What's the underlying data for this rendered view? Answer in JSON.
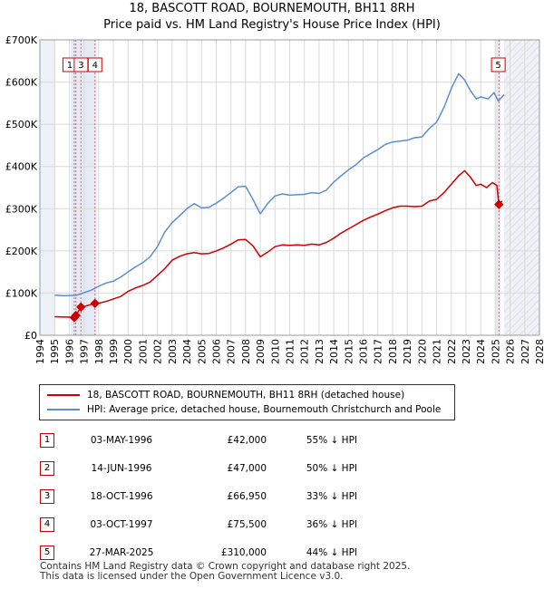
{
  "header": {
    "title": "18, BASCOTT ROAD, BOURNEMOUTH, BH11 8RH",
    "subtitle": "Price paid vs. HM Land Registry's House Price Index (HPI)"
  },
  "chart_data": {
    "type": "line",
    "xlim": [
      1994,
      2028
    ],
    "ylim": [
      0,
      700000
    ],
    "y_ticks": [
      {
        "value": 0,
        "label": "£0"
      },
      {
        "value": 100000,
        "label": "£100K"
      },
      {
        "value": 200000,
        "label": "£200K"
      },
      {
        "value": 300000,
        "label": "£300K"
      },
      {
        "value": 400000,
        "label": "£400K"
      },
      {
        "value": 500000,
        "label": "£500K"
      },
      {
        "value": 600000,
        "label": "£600K"
      },
      {
        "value": 700000,
        "label": "£700K"
      }
    ],
    "x_ticks": [
      "1994",
      "1995",
      "1996",
      "1997",
      "1998",
      "1999",
      "2000",
      "2001",
      "2002",
      "2003",
      "2004",
      "2005",
      "2006",
      "2007",
      "2008",
      "2009",
      "2010",
      "2011",
      "2012",
      "2013",
      "2014",
      "2015",
      "2016",
      "2017",
      "2018",
      "2019",
      "2020",
      "2021",
      "2022",
      "2023",
      "2024",
      "2025",
      "2026",
      "2027",
      "2028"
    ],
    "data_start": 1995.0,
    "data_end": 2025.6,
    "series": [
      {
        "name": "18, BASCOTT ROAD, BOURNEMOUTH, BH11 8RH (detached house)",
        "color": "#cc0000",
        "points": [
          [
            1995.0,
            44000
          ],
          [
            1995.5,
            43500
          ],
          [
            1996.0,
            43000
          ],
          [
            1996.33,
            42000
          ],
          [
            1996.45,
            47000
          ],
          [
            1996.79,
            66950
          ],
          [
            1997.0,
            68000
          ],
          [
            1997.75,
            75500
          ],
          [
            1998.0,
            76000
          ],
          [
            1998.5,
            80000
          ],
          [
            1999.0,
            86000
          ],
          [
            1999.5,
            92000
          ],
          [
            2000.0,
            104000
          ],
          [
            2000.5,
            112000
          ],
          [
            2001.0,
            118000
          ],
          [
            2001.5,
            126000
          ],
          [
            2002.0,
            142000
          ],
          [
            2002.5,
            158000
          ],
          [
            2003.0,
            178000
          ],
          [
            2003.5,
            187000
          ],
          [
            2004.0,
            193000
          ],
          [
            2004.5,
            196000
          ],
          [
            2005.0,
            193000
          ],
          [
            2005.5,
            194000
          ],
          [
            2006.0,
            200000
          ],
          [
            2006.5,
            207000
          ],
          [
            2007.0,
            216000
          ],
          [
            2007.5,
            226000
          ],
          [
            2008.0,
            227000
          ],
          [
            2008.5,
            212000
          ],
          [
            2009.0,
            186000
          ],
          [
            2009.5,
            197000
          ],
          [
            2010.0,
            210000
          ],
          [
            2010.5,
            214000
          ],
          [
            2011.0,
            213000
          ],
          [
            2011.5,
            214000
          ],
          [
            2012.0,
            213000
          ],
          [
            2012.5,
            216000
          ],
          [
            2013.0,
            214000
          ],
          [
            2013.5,
            220000
          ],
          [
            2014.0,
            230000
          ],
          [
            2014.5,
            242000
          ],
          [
            2015.0,
            252000
          ],
          [
            2015.5,
            262000
          ],
          [
            2016.0,
            272000
          ],
          [
            2016.5,
            280000
          ],
          [
            2017.0,
            287000
          ],
          [
            2017.5,
            295000
          ],
          [
            2018.0,
            302000
          ],
          [
            2018.5,
            306000
          ],
          [
            2019.0,
            306000
          ],
          [
            2019.5,
            305000
          ],
          [
            2020.0,
            306000
          ],
          [
            2020.5,
            318000
          ],
          [
            2021.0,
            322000
          ],
          [
            2021.5,
            338000
          ],
          [
            2022.0,
            358000
          ],
          [
            2022.5,
            378000
          ],
          [
            2022.9,
            390000
          ],
          [
            2023.3,
            375000
          ],
          [
            2023.7,
            355000
          ],
          [
            2024.0,
            358000
          ],
          [
            2024.4,
            350000
          ],
          [
            2024.8,
            362000
          ],
          [
            2025.1,
            355000
          ],
          [
            2025.24,
            310000
          ],
          [
            2025.45,
            318000
          ]
        ]
      },
      {
        "name": "HPI: Average price, detached house, Bournemouth Christchurch and Poole",
        "color": "#5b8fd0",
        "points": [
          [
            1995.0,
            95000
          ],
          [
            1995.5,
            94000
          ],
          [
            1996.0,
            94000
          ],
          [
            1996.5,
            95000
          ],
          [
            1997.0,
            101000
          ],
          [
            1997.5,
            107000
          ],
          [
            1998.0,
            116000
          ],
          [
            1998.5,
            124000
          ],
          [
            1999.0,
            128000
          ],
          [
            1999.5,
            138000
          ],
          [
            2000.0,
            150000
          ],
          [
            2000.5,
            162000
          ],
          [
            2001.0,
            172000
          ],
          [
            2001.5,
            186000
          ],
          [
            2002.0,
            210000
          ],
          [
            2002.5,
            245000
          ],
          [
            2003.0,
            267000
          ],
          [
            2003.5,
            283000
          ],
          [
            2004.0,
            300000
          ],
          [
            2004.5,
            312000
          ],
          [
            2005.0,
            302000
          ],
          [
            2005.5,
            303000
          ],
          [
            2006.0,
            313000
          ],
          [
            2006.5,
            325000
          ],
          [
            2007.0,
            338000
          ],
          [
            2007.5,
            352000
          ],
          [
            2008.0,
            353000
          ],
          [
            2008.5,
            322000
          ],
          [
            2009.0,
            288000
          ],
          [
            2009.5,
            312000
          ],
          [
            2010.0,
            330000
          ],
          [
            2010.5,
            335000
          ],
          [
            2011.0,
            332000
          ],
          [
            2011.5,
            333000
          ],
          [
            2012.0,
            334000
          ],
          [
            2012.5,
            338000
          ],
          [
            2013.0,
            336000
          ],
          [
            2013.5,
            344000
          ],
          [
            2014.0,
            363000
          ],
          [
            2014.5,
            378000
          ],
          [
            2015.0,
            392000
          ],
          [
            2015.5,
            404000
          ],
          [
            2016.0,
            420000
          ],
          [
            2016.5,
            430000
          ],
          [
            2017.0,
            440000
          ],
          [
            2017.5,
            452000
          ],
          [
            2018.0,
            458000
          ],
          [
            2018.5,
            460000
          ],
          [
            2019.0,
            462000
          ],
          [
            2019.5,
            468000
          ],
          [
            2020.0,
            470000
          ],
          [
            2020.5,
            490000
          ],
          [
            2021.0,
            505000
          ],
          [
            2021.5,
            540000
          ],
          [
            2022.0,
            585000
          ],
          [
            2022.5,
            620000
          ],
          [
            2022.9,
            605000
          ],
          [
            2023.3,
            580000
          ],
          [
            2023.7,
            560000
          ],
          [
            2024.0,
            565000
          ],
          [
            2024.5,
            560000
          ],
          [
            2024.9,
            575000
          ],
          [
            2025.2,
            555000
          ],
          [
            2025.6,
            570000
          ]
        ]
      }
    ],
    "sales": [
      {
        "id": "1",
        "x": 1996.34,
        "value": 42000
      },
      {
        "id": "2",
        "x": 1996.45,
        "value": 47000
      },
      {
        "id": "3",
        "x": 1996.79,
        "value": 66950
      },
      {
        "id": "4",
        "x": 1997.75,
        "value": 75500
      },
      {
        "id": "5",
        "x": 2025.24,
        "value": 310000
      }
    ],
    "marker_groups": [
      {
        "from": 1996.1,
        "to": 1997.85
      },
      {
        "from": 2024.95,
        "to": 2025.35
      }
    ],
    "label_boxes": [
      {
        "label": "1",
        "x": 1996.03
      },
      {
        "label": "3",
        "x": 1996.8
      },
      {
        "label": "4",
        "x": 1997.75
      },
      {
        "label": "5",
        "x": 2025.2
      }
    ]
  },
  "legend": {
    "property_label": "18, BASCOTT ROAD, BOURNEMOUTH, BH11 8RH (detached house)",
    "hpi_label": "HPI: Average price, detached house, Bournemouth Christchurch and Poole",
    "property_color": "#cc0000",
    "hpi_color": "#5b8fd0"
  },
  "transactions": [
    {
      "num": "1",
      "date": "03-MAY-1996",
      "price": "£42,000",
      "delta": "55% ↓ HPI"
    },
    {
      "num": "2",
      "date": "14-JUN-1996",
      "price": "£47,000",
      "delta": "50% ↓ HPI"
    },
    {
      "num": "3",
      "date": "18-OCT-1996",
      "price": "£66,950",
      "delta": "33% ↓ HPI"
    },
    {
      "num": "4",
      "date": "03-OCT-1997",
      "price": "£75,500",
      "delta": "36% ↓ HPI"
    },
    {
      "num": "5",
      "date": "27-MAR-2025",
      "price": "£310,000",
      "delta": "44% ↓ HPI"
    }
  ],
  "footer": {
    "line1": "Contains HM Land Registry data © Crown copyright and database right 2025.",
    "line2": "This data is licensed under the Open Government Licence v3.0."
  }
}
